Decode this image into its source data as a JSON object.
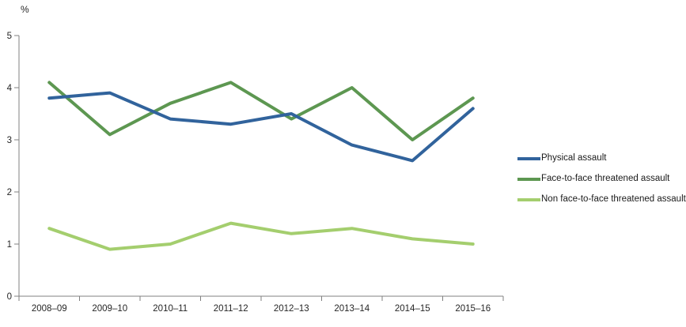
{
  "chart_data": {
    "type": "line",
    "title": "",
    "ylabel": "%",
    "xlabel": "",
    "categories": [
      "2008–09",
      "2009–10",
      "2010–11",
      "2011–12",
      "2012–13",
      "2013–14",
      "2014–15",
      "2015–16"
    ],
    "series": [
      {
        "name": "Physical assault",
        "color": "#31639c",
        "values": [
          3.8,
          3.9,
          3.4,
          3.3,
          3.5,
          2.9,
          2.6,
          3.6
        ]
      },
      {
        "name": "Face-to-face threatened assault",
        "color": "#5d9751",
        "values": [
          4.1,
          3.1,
          3.7,
          4.1,
          3.4,
          4.0,
          3.0,
          3.8
        ]
      },
      {
        "name": "Non face-to-face threatened assault",
        "color": "#a4ce6e",
        "values": [
          1.3,
          0.9,
          1.0,
          1.4,
          1.2,
          1.3,
          1.1,
          1.0
        ]
      }
    ],
    "ylim": [
      0,
      5
    ],
    "yticks": [
      0,
      1,
      2,
      3,
      4,
      5
    ],
    "grid": false,
    "legend_position": "right",
    "axis_color": "#808080"
  }
}
